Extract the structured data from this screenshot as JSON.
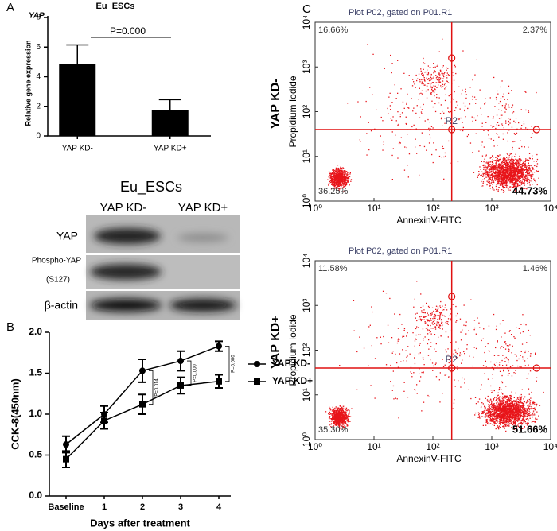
{
  "panels": [
    "A",
    "B",
    "C"
  ],
  "chart_data": [
    {
      "type": "bar",
      "title": "Eu_ESCs",
      "subtitle": "YAP",
      "ylabel": "Relative gene expression",
      "categories": [
        "YAP KD-",
        "YAP KD+"
      ],
      "values": [
        4.85,
        1.75
      ],
      "errors": [
        1.3,
        0.7
      ],
      "color": "#000000",
      "ylim": [
        0,
        8
      ],
      "yticks": [
        0,
        2,
        4,
        6,
        8
      ],
      "annotation": "P=0.000"
    },
    {
      "type": "line",
      "ylabel": "CCK-8(450nm)",
      "xlabel": "Days after treatment",
      "categories": [
        "Baseline",
        "1",
        "2",
        "3",
        "4"
      ],
      "series": [
        {
          "name": "YAP KD-",
          "color": "#000000",
          "marker": "circle",
          "values": [
            0.63,
            1.0,
            1.53,
            1.65,
            1.83
          ],
          "errors": [
            0.1,
            0.1,
            0.14,
            0.12,
            0.06
          ]
        },
        {
          "name": "YAP KD+",
          "color": "#000000",
          "marker": "square",
          "values": [
            0.45,
            0.92,
            1.12,
            1.35,
            1.4
          ],
          "errors": [
            0.1,
            0.1,
            0.12,
            0.1,
            0.08
          ]
        }
      ],
      "ylim": [
        0,
        2
      ],
      "yticks": [
        {
          "value": 0,
          "label": "0.0"
        },
        {
          "value": 0.5,
          "label": "0.5"
        },
        {
          "value": 1,
          "label": "1.0"
        },
        {
          "value": 1.5,
          "label": "1.5"
        },
        {
          "value": 2,
          "label": "2.0"
        }
      ],
      "annotations": [
        "P=0.014",
        "P=0.000",
        "P=0.000"
      ]
    },
    {
      "type": "flow",
      "title": "Plot P02, gated on P01.R1",
      "group": "YAP KD-",
      "xlabel": "AnnexinV-FITC",
      "ylabel": "Propidium Iodide",
      "gate": "R2",
      "xscale": "log",
      "yscale": "log",
      "xlim": [
        1,
        10000
      ],
      "ylim": [
        1,
        10000
      ],
      "xticks": [
        {
          "value": 1,
          "label": "10⁰"
        },
        {
          "value": 10,
          "label": "10¹"
        },
        {
          "value": 100,
          "label": "10²"
        },
        {
          "value": 1000,
          "label": "10³"
        },
        {
          "value": 10000,
          "label": "10⁴"
        }
      ],
      "yticks": [
        {
          "value": 1,
          "label": "10⁰"
        },
        {
          "value": 10,
          "label": "10¹"
        },
        {
          "value": 100,
          "label": "10²"
        },
        {
          "value": 1000,
          "label": "10³"
        },
        {
          "value": 10000,
          "label": "10⁴"
        }
      ],
      "quadrants": [
        "16.66%",
        "2.37%",
        "36.25%",
        "44.73%"
      ],
      "color": "#e8141a"
    },
    {
      "type": "flow",
      "title": "Plot P02, gated on P01.R1",
      "group": "YAP KD+",
      "xlabel": "AnnexinV-FITC",
      "ylabel": "Propidium Iodide",
      "gate": "R2",
      "xscale": "log",
      "yscale": "log",
      "xlim": [
        1,
        10000
      ],
      "ylim": [
        1,
        10000
      ],
      "xticks": [
        {
          "value": 1,
          "label": "10⁰"
        },
        {
          "value": 10,
          "label": "10¹"
        },
        {
          "value": 100,
          "label": "10²"
        },
        {
          "value": 1000,
          "label": "10³"
        },
        {
          "value": 10000,
          "label": "10⁴"
        }
      ],
      "yticks": [
        {
          "value": 1,
          "label": "10⁰"
        },
        {
          "value": 10,
          "label": "10¹"
        },
        {
          "value": 100,
          "label": "10²"
        },
        {
          "value": 1000,
          "label": "10³"
        },
        {
          "value": 10000,
          "label": "10⁴"
        }
      ],
      "quadrants": [
        "11.58%",
        "1.46%",
        "35.30%",
        "51.66%"
      ],
      "color": "#e8141a"
    }
  ],
  "western_blot": {
    "title": "Eu_ESCs",
    "lanes": [
      "YAP KD-",
      "YAP KD+"
    ],
    "rows": [
      [
        "YAP"
      ],
      [
        "Phospho-YAP",
        "(S127)"
      ],
      [
        "β-actin"
      ]
    ]
  }
}
